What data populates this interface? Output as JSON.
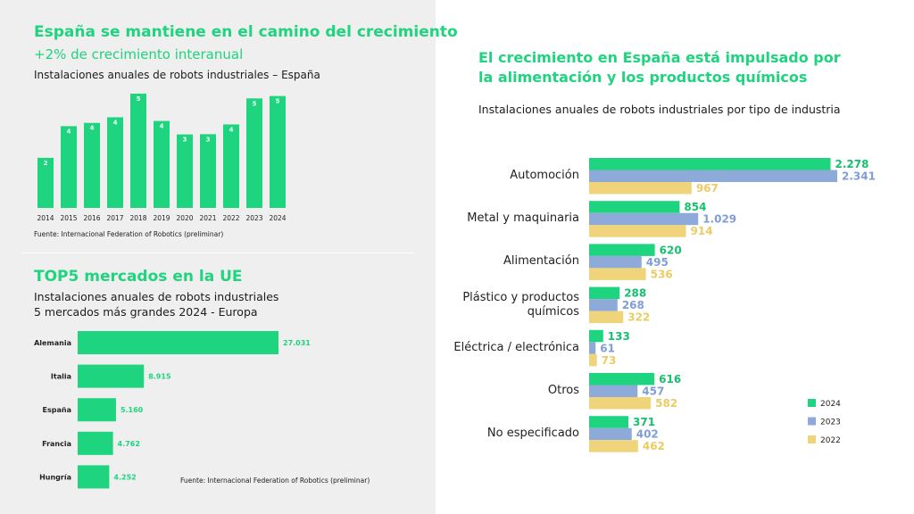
{
  "chart_data": [
    {
      "type": "bar",
      "title": "España se mantiene en el camino del crecimiento",
      "subtitle": "+2% de crecimiento interanual",
      "description": "Instalaciones anuales de robots industriales – España",
      "source": "Fuente: Internacional Federation of Robotics (preliminar)",
      "categories": [
        "2014",
        "2015",
        "2016",
        "2017",
        "2018",
        "2019",
        "2020",
        "2021",
        "2022",
        "2023",
        "2024"
      ],
      "values": [
        2.31,
        3.77,
        3.92,
        4.18,
        5.27,
        4.01,
        3.39,
        3.4,
        3.85,
        5.05,
        5.16
      ],
      "value_labels": [
        "2",
        "4",
        "4",
        "4",
        "5",
        "4",
        "3",
        "3",
        "4",
        "5",
        "5"
      ],
      "color": "#1ed47e"
    },
    {
      "type": "hbar",
      "title": "TOP5 mercados en la UE",
      "subtitle": [
        "Instalaciones anuales de robots industriales",
        "5 mercados más grandes 2024  - Europa"
      ],
      "source": "Fuente: Internacional Federation of Robotics (preliminar)",
      "categories": [
        "Alemania",
        "Italia",
        "España",
        "Francia",
        "Hungría"
      ],
      "values": [
        27031,
        8915,
        5160,
        4762,
        4252
      ],
      "value_labels": [
        "27.031",
        "8.915",
        "5.160",
        "4.762",
        "4.252"
      ],
      "color": "#1ed47e"
    },
    {
      "type": "grouped-hbar",
      "title": "El crecimiento en España está impulsado por la alimentación y los productos químicos",
      "subtitle": "Instalaciones anuales de robots industriales por tipo de industria",
      "categories": [
        "Automoción",
        "Metal y maquinaria",
        "Alimentación",
        "Plástico y productos químicos",
        "Eléctrica / electrónica",
        "Otros",
        "No especificado"
      ],
      "series": [
        {
          "name": "2024",
          "color": "#1ed47e",
          "label_color": "#17c06f",
          "values": [
            2278,
            854,
            620,
            288,
            133,
            616,
            371
          ],
          "value_labels": [
            "2.278",
            "854",
            "620",
            "288",
            "133",
            "616",
            "371"
          ]
        },
        {
          "name": "2023",
          "color": "#8eaad9",
          "label_color": "#7f9ed6",
          "values": [
            2341,
            1029,
            495,
            268,
            61,
            457,
            402
          ],
          "value_labels": [
            "2.341",
            "1.029",
            "495",
            "268",
            "61",
            "457",
            "402"
          ]
        },
        {
          "name": "2022",
          "color": "#f0d47c",
          "label_color": "#eccb62",
          "values": [
            967,
            914,
            536,
            322,
            73,
            582,
            462
          ],
          "value_labels": [
            "967",
            "914",
            "536",
            "322",
            "73",
            "582",
            "462"
          ]
        }
      ],
      "legend": "lower-right"
    }
  ]
}
